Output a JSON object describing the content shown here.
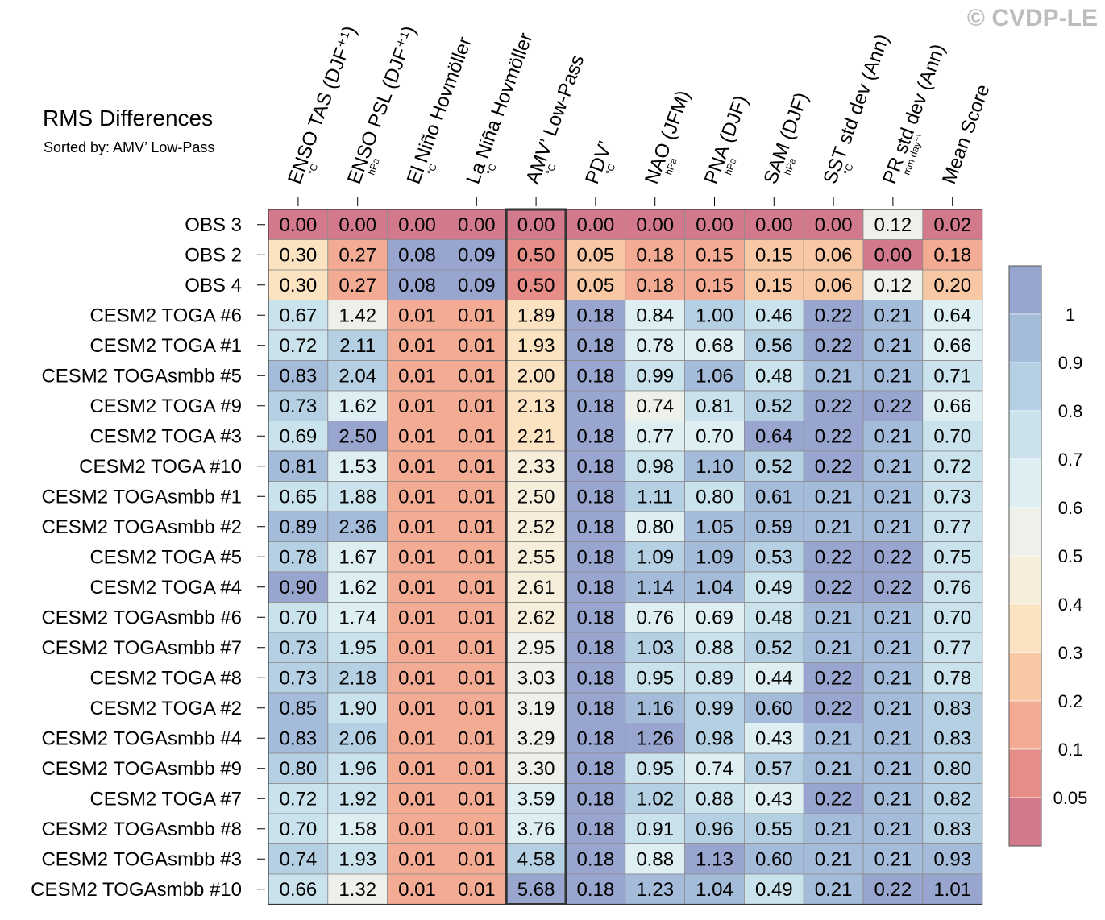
{
  "chart_data": {
    "type": "heatmap",
    "title": "RMS Differences",
    "subtitle": "Sorted by: AMV’ Low-Pass",
    "watermark": "© CVDP-LE",
    "columns": [
      {
        "label": "ENSO TAS (DJF⁺¹)",
        "unit": "°C"
      },
      {
        "label": "ENSO PSL (DJF⁺¹)",
        "unit": "hPa"
      },
      {
        "label": "El Niño Hovmöller",
        "unit": "°C"
      },
      {
        "label": "La Niña Hovmöller",
        "unit": "°C"
      },
      {
        "label": "AMV’ Low-Pass",
        "unit": "°C"
      },
      {
        "label": "PDV’",
        "unit": "°C"
      },
      {
        "label": "NAO (JFM)",
        "unit": "hPa"
      },
      {
        "label": "PNA (DJF)",
        "unit": "hPa"
      },
      {
        "label": "SAM (DJF)",
        "unit": "hPa"
      },
      {
        "label": "SST std dev (Ann)",
        "unit": "°C"
      },
      {
        "label": "PR std dev (Ann)",
        "unit": "mm day⁻¹"
      },
      {
        "label": "Mean Score",
        "unit": ""
      }
    ],
    "sorted_column": 4,
    "rows": [
      {
        "label": "OBS 3",
        "values": [
          "0.00",
          "0.00",
          "0.00",
          "0.00",
          "0.00",
          "0.00",
          "0.00",
          "0.00",
          "0.00",
          "0.00",
          "0.12",
          "0.02"
        ]
      },
      {
        "label": "OBS 2",
        "values": [
          "0.30",
          "0.27",
          "0.08",
          "0.09",
          "0.50",
          "0.05",
          "0.18",
          "0.15",
          "0.15",
          "0.06",
          "0.00",
          "0.18"
        ]
      },
      {
        "label": "OBS 4",
        "values": [
          "0.30",
          "0.27",
          "0.08",
          "0.09",
          "0.50",
          "0.05",
          "0.18",
          "0.15",
          "0.15",
          "0.06",
          "0.12",
          "0.20"
        ]
      },
      {
        "label": "CESM2 TOGA #6",
        "values": [
          "0.67",
          "1.42",
          "0.01",
          "0.01",
          "1.89",
          "0.18",
          "0.84",
          "1.00",
          "0.46",
          "0.22",
          "0.21",
          "0.64"
        ]
      },
      {
        "label": "CESM2 TOGA #1",
        "values": [
          "0.72",
          "2.11",
          "0.01",
          "0.01",
          "1.93",
          "0.18",
          "0.78",
          "0.68",
          "0.56",
          "0.22",
          "0.21",
          "0.66"
        ]
      },
      {
        "label": "CESM2 TOGAsmbb #5",
        "values": [
          "0.83",
          "2.04",
          "0.01",
          "0.01",
          "2.00",
          "0.18",
          "0.99",
          "1.06",
          "0.48",
          "0.21",
          "0.21",
          "0.71"
        ]
      },
      {
        "label": "CESM2 TOGA #9",
        "values": [
          "0.73",
          "1.62",
          "0.01",
          "0.01",
          "2.13",
          "0.18",
          "0.74",
          "0.81",
          "0.52",
          "0.22",
          "0.22",
          "0.66"
        ]
      },
      {
        "label": "CESM2 TOGA #3",
        "values": [
          "0.69",
          "2.50",
          "0.01",
          "0.01",
          "2.21",
          "0.18",
          "0.77",
          "0.70",
          "0.64",
          "0.22",
          "0.21",
          "0.70"
        ]
      },
      {
        "label": "CESM2 TOGA #10",
        "values": [
          "0.81",
          "1.53",
          "0.01",
          "0.01",
          "2.33",
          "0.18",
          "0.98",
          "1.10",
          "0.52",
          "0.22",
          "0.21",
          "0.72"
        ]
      },
      {
        "label": "CESM2 TOGAsmbb #1",
        "values": [
          "0.65",
          "1.88",
          "0.01",
          "0.01",
          "2.50",
          "0.18",
          "1.11",
          "0.80",
          "0.61",
          "0.21",
          "0.21",
          "0.73"
        ]
      },
      {
        "label": "CESM2 TOGAsmbb #2",
        "values": [
          "0.89",
          "2.36",
          "0.01",
          "0.01",
          "2.52",
          "0.18",
          "0.80",
          "1.05",
          "0.59",
          "0.21",
          "0.21",
          "0.77"
        ]
      },
      {
        "label": "CESM2 TOGA #5",
        "values": [
          "0.78",
          "1.67",
          "0.01",
          "0.01",
          "2.55",
          "0.18",
          "1.09",
          "1.09",
          "0.53",
          "0.22",
          "0.22",
          "0.75"
        ]
      },
      {
        "label": "CESM2 TOGA #4",
        "values": [
          "0.90",
          "1.62",
          "0.01",
          "0.01",
          "2.61",
          "0.18",
          "1.14",
          "1.04",
          "0.49",
          "0.22",
          "0.22",
          "0.76"
        ]
      },
      {
        "label": "CESM2 TOGAsmbb #6",
        "values": [
          "0.70",
          "1.74",
          "0.01",
          "0.01",
          "2.62",
          "0.18",
          "0.76",
          "0.69",
          "0.48",
          "0.21",
          "0.21",
          "0.70"
        ]
      },
      {
        "label": "CESM2 TOGAsmbb #7",
        "values": [
          "0.73",
          "1.95",
          "0.01",
          "0.01",
          "2.95",
          "0.18",
          "1.03",
          "0.88",
          "0.52",
          "0.21",
          "0.21",
          "0.77"
        ]
      },
      {
        "label": "CESM2 TOGA #8",
        "values": [
          "0.73",
          "2.18",
          "0.01",
          "0.01",
          "3.03",
          "0.18",
          "0.95",
          "0.89",
          "0.44",
          "0.22",
          "0.21",
          "0.78"
        ]
      },
      {
        "label": "CESM2 TOGA #2",
        "values": [
          "0.85",
          "1.90",
          "0.01",
          "0.01",
          "3.19",
          "0.18",
          "1.16",
          "0.99",
          "0.60",
          "0.22",
          "0.21",
          "0.83"
        ]
      },
      {
        "label": "CESM2 TOGAsmbb #4",
        "values": [
          "0.83",
          "2.06",
          "0.01",
          "0.01",
          "3.29",
          "0.18",
          "1.26",
          "0.98",
          "0.43",
          "0.21",
          "0.21",
          "0.83"
        ]
      },
      {
        "label": "CESM2 TOGAsmbb #9",
        "values": [
          "0.80",
          "1.96",
          "0.01",
          "0.01",
          "3.30",
          "0.18",
          "0.95",
          "0.74",
          "0.57",
          "0.21",
          "0.21",
          "0.80"
        ]
      },
      {
        "label": "CESM2 TOGA #7",
        "values": [
          "0.72",
          "1.92",
          "0.01",
          "0.01",
          "3.59",
          "0.18",
          "1.02",
          "0.88",
          "0.43",
          "0.22",
          "0.21",
          "0.82"
        ]
      },
      {
        "label": "CESM2 TOGAsmbb #8",
        "values": [
          "0.70",
          "1.58",
          "0.01",
          "0.01",
          "3.76",
          "0.18",
          "0.91",
          "0.96",
          "0.55",
          "0.21",
          "0.21",
          "0.83"
        ]
      },
      {
        "label": "CESM2 TOGAsmbb #3",
        "values": [
          "0.74",
          "1.93",
          "0.01",
          "0.01",
          "4.58",
          "0.18",
          "0.88",
          "1.13",
          "0.60",
          "0.21",
          "0.21",
          "0.93"
        ]
      },
      {
        "label": "CESM2 TOGAsmbb #10",
        "values": [
          "0.66",
          "1.32",
          "0.01",
          "0.01",
          "5.68",
          "0.18",
          "1.23",
          "1.04",
          "0.49",
          "0.21",
          "0.22",
          "1.01"
        ]
      }
    ],
    "colorbar": {
      "labels": [
        "1",
        "0.9",
        "0.8",
        "0.7",
        "0.6",
        "0.5",
        "0.4",
        "0.3",
        "0.2",
        "0.1",
        "0.05"
      ],
      "colors": [
        "#98a6cf",
        "#a4bbda",
        "#b5d0e3",
        "#c9e2ec",
        "#ddeff2",
        "#eef0ea",
        "#f6eedb",
        "#fbe3c2",
        "#f8c8a4",
        "#f3ac93",
        "#e68d88",
        "#d27a8c"
      ]
    }
  }
}
